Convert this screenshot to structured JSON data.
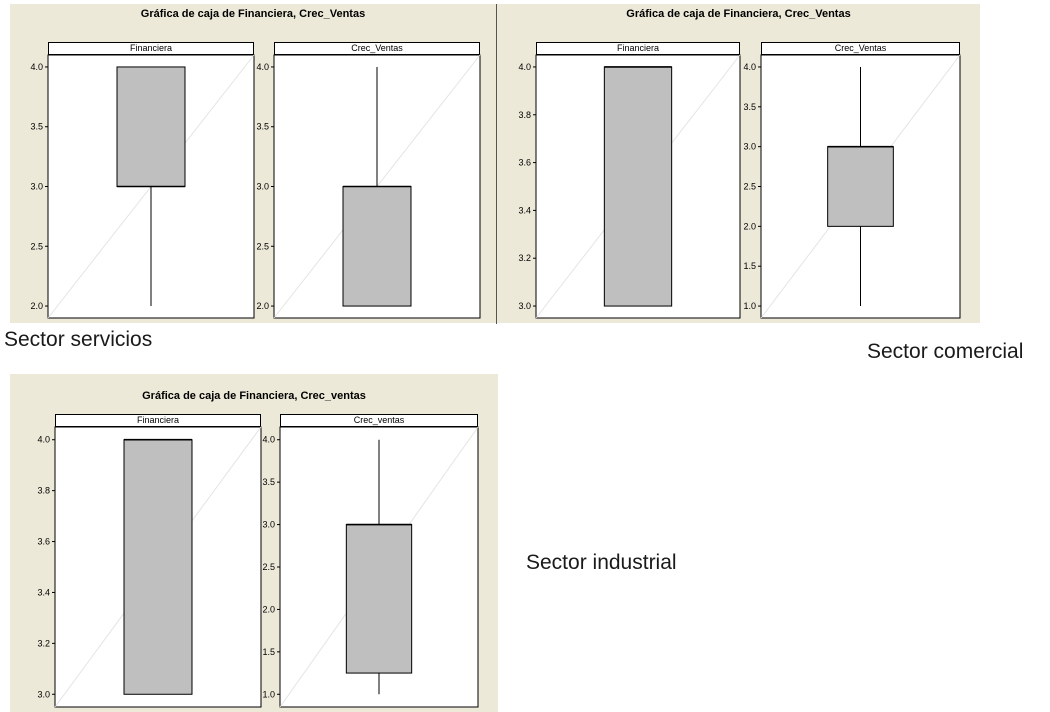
{
  "labels": {
    "servicios": "Sector servicios",
    "comercial": "Sector comercial",
    "industrial": "Sector industrial"
  },
  "colors": {
    "box_fill": "#bfbfbf",
    "background": "#ece9d8",
    "panel_bg": "#ffffff"
  },
  "chart_data": [
    {
      "type": "box",
      "title": "Gráfica de caja de Financiera, Crec_Ventas",
      "panels": [
        {
          "name": "Financiera",
          "ylim": [
            1.9,
            4.1
          ],
          "ticks": [
            "2.0",
            "2.5",
            "3.0",
            "3.5",
            "4.0"
          ],
          "min": 2.0,
          "q1": 3.0,
          "median": 3.0,
          "q3": 4.0,
          "max": 4.0
        },
        {
          "name": "Crec_Ventas",
          "ylim": [
            1.9,
            4.1
          ],
          "ticks": [
            "2.0",
            "2.5",
            "3.0",
            "3.5",
            "4.0"
          ],
          "min": 2.0,
          "q1": 2.0,
          "median": 3.0,
          "q3": 3.0,
          "max": 4.0
        }
      ]
    },
    {
      "type": "box",
      "title": "Gráfica de caja de Financiera, Crec_Ventas",
      "panels": [
        {
          "name": "Financiera",
          "ylim": [
            2.95,
            4.05
          ],
          "ticks": [
            "3.0",
            "3.2",
            "3.4",
            "3.6",
            "3.8",
            "4.0"
          ],
          "min": 3.0,
          "q1": 3.0,
          "median": 4.0,
          "q3": 4.0,
          "max": 4.0
        },
        {
          "name": "Crec_Ventas",
          "ylim": [
            0.85,
            4.15
          ],
          "ticks": [
            "1.0",
            "1.5",
            "2.0",
            "2.5",
            "3.0",
            "3.5",
            "4.0"
          ],
          "min": 1.0,
          "q1": 2.0,
          "median": 3.0,
          "q3": 3.0,
          "max": 4.0
        }
      ]
    },
    {
      "type": "box",
      "title": "Gráfica de caja de Financiera, Crec_ventas",
      "panels": [
        {
          "name": "Financiera",
          "ylim": [
            2.95,
            4.05
          ],
          "ticks": [
            "3.0",
            "3.2",
            "3.4",
            "3.6",
            "3.8",
            "4.0"
          ],
          "min": 3.0,
          "q1": 3.0,
          "median": 4.0,
          "q3": 4.0,
          "max": 4.0
        },
        {
          "name": "Crec_ventas",
          "ylim": [
            0.85,
            4.15
          ],
          "ticks": [
            "1.0",
            "1.5",
            "2.0",
            "2.5",
            "3.0",
            "3.5",
            "4.0"
          ],
          "min": 1.0,
          "q1": 1.25,
          "median": 3.0,
          "q3": 3.0,
          "max": 4.0
        }
      ]
    }
  ]
}
